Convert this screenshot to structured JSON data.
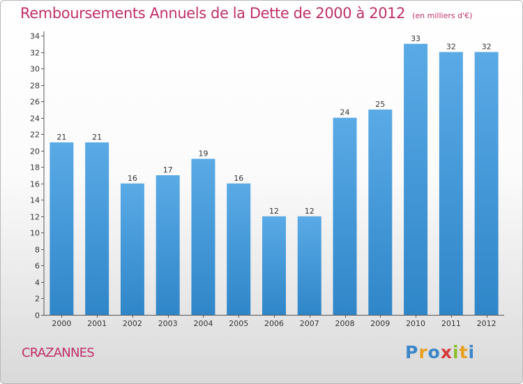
{
  "chart_data": {
    "type": "bar",
    "title": "Remboursements Annuels de la Dette de 2000 à 2012",
    "subtitle": "(en milliers d'€)",
    "categories": [
      "2000",
      "2001",
      "2002",
      "2003",
      "2004",
      "2005",
      "2006",
      "2007",
      "2008",
      "2009",
      "2010",
      "2011",
      "2012"
    ],
    "values": [
      21,
      21,
      16,
      17,
      19,
      16,
      12,
      12,
      24,
      25,
      33,
      32,
      32
    ],
    "xlabel": "",
    "ylabel": "",
    "ylim": [
      0,
      34
    ],
    "yticks": [
      0,
      2,
      4,
      6,
      8,
      10,
      12,
      14,
      16,
      18,
      20,
      22,
      24,
      26,
      28,
      30,
      32,
      34
    ],
    "grid": false,
    "data_labels": true,
    "bar_color": "#2f86c8",
    "bar_color_light": "#5aaae6"
  },
  "footer": {
    "town": "CRAZANNES",
    "logo": "Proxiti",
    "logo_colors": [
      "#3a86c8",
      "#e8a020",
      "#3a86c8",
      "#d43a3a",
      "#8bbf2a",
      "#e8a020",
      "#3a86c8"
    ]
  },
  "colors": {
    "title": "#c0306a",
    "axis": "#333333"
  }
}
